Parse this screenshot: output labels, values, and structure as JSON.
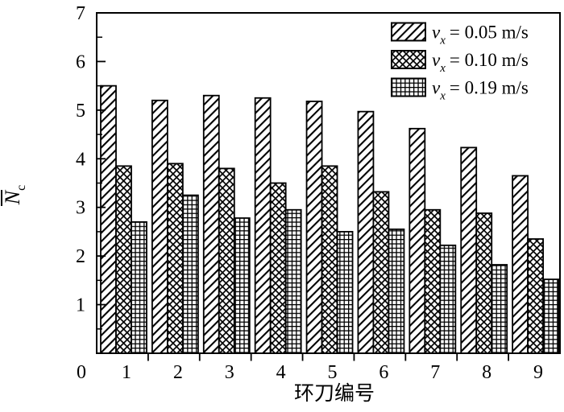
{
  "figure": {
    "background": "#ffffff",
    "foreground": "#000000"
  },
  "chart_data": {
    "type": "bar",
    "title": "",
    "xlabel": "环刀编号",
    "ylabel": {
      "base": "N",
      "overbar": true,
      "subscript": "c",
      "display": "N̄c"
    },
    "categories": [
      "1",
      "2",
      "3",
      "4",
      "5",
      "6",
      "7",
      "8",
      "9"
    ],
    "series": [
      {
        "name": "vx = 0.05 m/s",
        "pattern": "diagonal-hatch",
        "legend": {
          "symbol": "v",
          "subscript": "x",
          "value": "= 0.05 m/s"
        },
        "values": [
          5.5,
          5.2,
          5.3,
          5.25,
          5.18,
          4.97,
          4.62,
          4.23,
          3.65
        ]
      },
      {
        "name": "vx = 0.10 m/s",
        "pattern": "diagonal-crosshatch",
        "legend": {
          "symbol": "v",
          "subscript": "x",
          "value": "= 0.10 m/s"
        },
        "values": [
          3.85,
          3.9,
          3.8,
          3.5,
          3.85,
          3.32,
          2.95,
          2.88,
          2.35
        ]
      },
      {
        "name": "vx = 0.19 m/s",
        "pattern": "square-grid",
        "legend": {
          "symbol": "v",
          "subscript": "x",
          "value": "= 0.19 m/s"
        },
        "values": [
          2.7,
          3.25,
          2.78,
          2.95,
          2.5,
          2.55,
          2.22,
          1.82,
          1.52
        ]
      }
    ],
    "ylim": [
      0,
      7
    ],
    "yticks": [
      "0",
      "1",
      "2",
      "3",
      "4",
      "5",
      "6",
      "7"
    ],
    "xticks": [
      "0",
      "1",
      "2",
      "3",
      "4",
      "5",
      "6",
      "7",
      "8",
      "9"
    ],
    "minor_tick_step_y": 0.5,
    "origin_label": "0",
    "legend_position": "top-right-inside",
    "grid": false,
    "bar_fill": "#ffffff",
    "bar_stroke": "#000000"
  }
}
